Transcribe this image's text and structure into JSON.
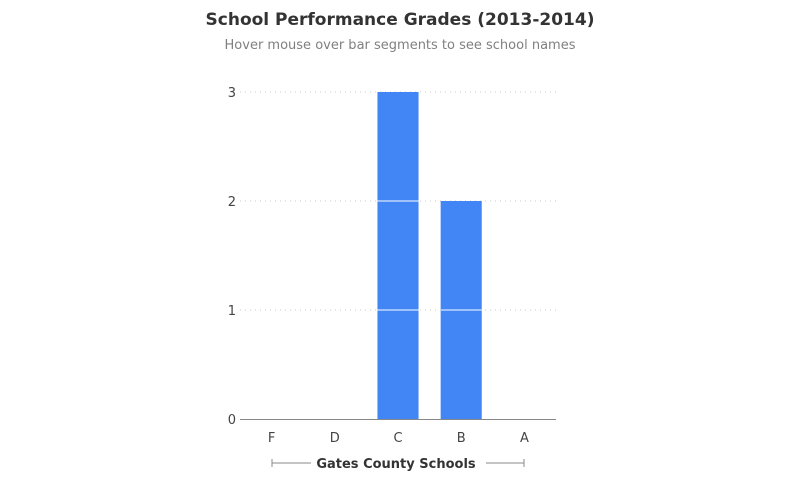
{
  "chart_data": {
    "type": "bar",
    "title": "School Performance Grades (2013-2014)",
    "subtitle": "Hover mouse over bar segments to see school names",
    "xlabel": "Gates County Schools",
    "ylabel": "",
    "categories": [
      "F",
      "D",
      "C",
      "B",
      "A"
    ],
    "values": [
      0,
      0,
      3,
      2,
      0
    ],
    "stacked_segment_value": 1,
    "ylim": [
      0,
      3
    ],
    "yticks": [
      "0",
      "1",
      "2",
      "3"
    ],
    "grid": true,
    "bar_color": "#4285f4"
  }
}
